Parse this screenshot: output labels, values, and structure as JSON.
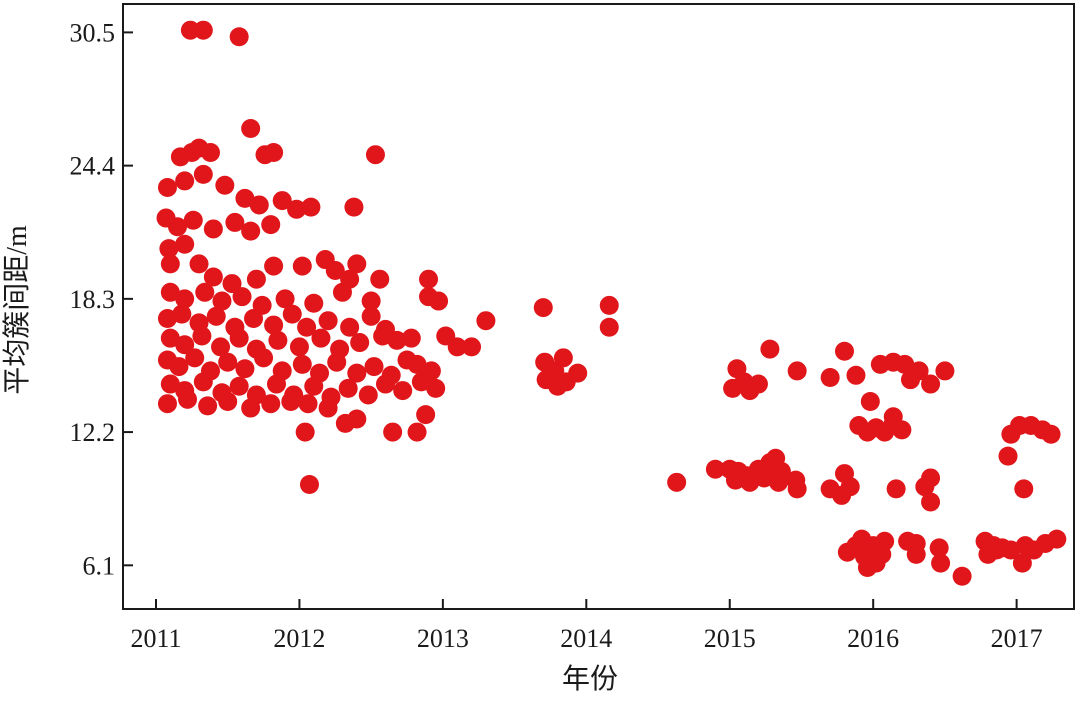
{
  "chart_data": {
    "type": "scatter",
    "title": "",
    "xlabel": "年份",
    "ylabel": "平均簇间距/m",
    "xlim": [
      2010.77,
      2017.4
    ],
    "ylim": [
      4.1,
      31.8
    ],
    "x_ticks": [
      2011,
      2012,
      2013,
      2014,
      2015,
      2016,
      2017
    ],
    "x_tick_labels": [
      "2011",
      "2012",
      "2013",
      "2014",
      "2015",
      "2016",
      "2017"
    ],
    "y_ticks": [
      6.1,
      12.2,
      18.3,
      24.4,
      30.5
    ],
    "y_tick_labels": [
      "6.1",
      "12.2",
      "18.3",
      "24.4",
      "30.5"
    ],
    "grid": false,
    "legend": "none",
    "marker_color": "#e0161b",
    "series": [
      {
        "points": [
          [
            2011.24,
            30.6
          ],
          [
            2011.33,
            30.6
          ],
          [
            2011.58,
            30.3
          ],
          [
            2011.66,
            26.1
          ],
          [
            2011.17,
            24.8
          ],
          [
            2011.25,
            25.0
          ],
          [
            2011.3,
            25.2
          ],
          [
            2011.38,
            25.0
          ],
          [
            2011.76,
            24.9
          ],
          [
            2011.82,
            25.0
          ],
          [
            2012.53,
            24.9
          ],
          [
            2011.08,
            23.4
          ],
          [
            2011.2,
            23.7
          ],
          [
            2011.33,
            24.0
          ],
          [
            2011.48,
            23.5
          ],
          [
            2011.62,
            22.9
          ],
          [
            2011.72,
            22.6
          ],
          [
            2011.88,
            22.8
          ],
          [
            2011.98,
            22.4
          ],
          [
            2012.08,
            22.5
          ],
          [
            2012.38,
            22.5
          ],
          [
            2011.07,
            22.0
          ],
          [
            2011.15,
            21.6
          ],
          [
            2011.26,
            21.9
          ],
          [
            2011.4,
            21.5
          ],
          [
            2011.55,
            21.8
          ],
          [
            2011.66,
            21.4
          ],
          [
            2011.8,
            21.7
          ],
          [
            2011.09,
            20.6
          ],
          [
            2011.2,
            20.8
          ],
          [
            2011.3,
            19.9
          ],
          [
            2011.1,
            19.9
          ],
          [
            2011.4,
            19.3
          ],
          [
            2011.53,
            19.0
          ],
          [
            2011.7,
            19.2
          ],
          [
            2011.82,
            19.8
          ],
          [
            2012.02,
            19.8
          ],
          [
            2012.18,
            20.1
          ],
          [
            2012.25,
            19.6
          ],
          [
            2012.4,
            19.9
          ],
          [
            2012.35,
            19.2
          ],
          [
            2012.56,
            19.2
          ],
          [
            2012.9,
            19.2
          ],
          [
            2011.1,
            18.6
          ],
          [
            2011.2,
            18.3
          ],
          [
            2011.34,
            18.6
          ],
          [
            2011.46,
            18.2
          ],
          [
            2011.6,
            18.4
          ],
          [
            2011.74,
            18.0
          ],
          [
            2011.9,
            18.3
          ],
          [
            2012.1,
            18.1
          ],
          [
            2012.3,
            18.6
          ],
          [
            2012.5,
            18.2
          ],
          [
            2012.9,
            18.4
          ],
          [
            2012.97,
            18.2
          ],
          [
            2011.08,
            17.4
          ],
          [
            2011.18,
            17.6
          ],
          [
            2011.3,
            17.2
          ],
          [
            2011.42,
            17.5
          ],
          [
            2011.55,
            17.0
          ],
          [
            2011.68,
            17.4
          ],
          [
            2011.82,
            17.1
          ],
          [
            2011.95,
            17.6
          ],
          [
            2012.05,
            17.0
          ],
          [
            2012.2,
            17.3
          ],
          [
            2012.35,
            17.0
          ],
          [
            2012.5,
            17.5
          ],
          [
            2012.6,
            16.9
          ],
          [
            2013.02,
            16.6
          ],
          [
            2013.3,
            17.3
          ],
          [
            2011.1,
            16.5
          ],
          [
            2011.2,
            16.2
          ],
          [
            2011.32,
            16.6
          ],
          [
            2011.45,
            16.1
          ],
          [
            2011.58,
            16.5
          ],
          [
            2011.7,
            16.0
          ],
          [
            2011.85,
            16.4
          ],
          [
            2012.0,
            16.1
          ],
          [
            2012.15,
            16.5
          ],
          [
            2012.28,
            16.0
          ],
          [
            2012.42,
            16.3
          ],
          [
            2012.58,
            16.6
          ],
          [
            2012.68,
            16.4
          ],
          [
            2012.78,
            16.5
          ],
          [
            2013.1,
            16.1
          ],
          [
            2013.2,
            16.1
          ],
          [
            2011.08,
            15.5
          ],
          [
            2011.16,
            15.2
          ],
          [
            2011.27,
            15.6
          ],
          [
            2011.38,
            15.0
          ],
          [
            2011.5,
            15.4
          ],
          [
            2011.62,
            15.1
          ],
          [
            2011.75,
            15.6
          ],
          [
            2011.88,
            15.0
          ],
          [
            2012.02,
            15.3
          ],
          [
            2012.14,
            14.9
          ],
          [
            2012.26,
            15.4
          ],
          [
            2012.4,
            14.9
          ],
          [
            2012.52,
            15.2
          ],
          [
            2012.64,
            14.8
          ],
          [
            2012.75,
            15.5
          ],
          [
            2012.82,
            15.3
          ],
          [
            2012.92,
            15.0
          ],
          [
            2011.1,
            14.4
          ],
          [
            2011.2,
            14.1
          ],
          [
            2011.33,
            14.5
          ],
          [
            2011.46,
            14.0
          ],
          [
            2011.58,
            14.3
          ],
          [
            2011.7,
            13.9
          ],
          [
            2011.84,
            14.4
          ],
          [
            2011.96,
            13.9
          ],
          [
            2012.1,
            14.3
          ],
          [
            2012.22,
            13.8
          ],
          [
            2012.34,
            14.2
          ],
          [
            2012.48,
            13.9
          ],
          [
            2012.6,
            14.4
          ],
          [
            2012.72,
            14.1
          ],
          [
            2012.85,
            14.5
          ],
          [
            2012.95,
            14.2
          ],
          [
            2011.08,
            13.5
          ],
          [
            2011.22,
            13.7
          ],
          [
            2011.36,
            13.4
          ],
          [
            2011.5,
            13.6
          ],
          [
            2011.66,
            13.3
          ],
          [
            2011.8,
            13.5
          ],
          [
            2011.94,
            13.6
          ],
          [
            2012.06,
            13.5
          ],
          [
            2012.2,
            13.3
          ],
          [
            2012.32,
            12.6
          ],
          [
            2012.4,
            12.8
          ],
          [
            2012.88,
            13.0
          ],
          [
            2012.04,
            12.2
          ],
          [
            2012.65,
            12.2
          ],
          [
            2012.82,
            12.2
          ],
          [
            2012.07,
            9.8
          ],
          [
            2013.7,
            17.9
          ],
          [
            2014.16,
            18.0
          ],
          [
            2014.16,
            17.0
          ],
          [
            2013.84,
            15.6
          ],
          [
            2013.71,
            15.4
          ],
          [
            2013.78,
            15.0
          ],
          [
            2013.72,
            14.6
          ],
          [
            2013.86,
            14.5
          ],
          [
            2013.94,
            14.9
          ],
          [
            2013.8,
            14.3
          ],
          [
            2014.63,
            9.9
          ],
          [
            2015.28,
            16.0
          ],
          [
            2015.05,
            15.1
          ],
          [
            2015.1,
            14.5
          ],
          [
            2015.02,
            14.2
          ],
          [
            2015.14,
            14.1
          ],
          [
            2015.2,
            14.4
          ],
          [
            2015.47,
            15.0
          ],
          [
            2014.9,
            10.5
          ],
          [
            2015.0,
            10.5
          ],
          [
            2015.06,
            10.4
          ],
          [
            2015.12,
            10.2
          ],
          [
            2015.2,
            10.5
          ],
          [
            2015.28,
            10.6
          ],
          [
            2015.36,
            10.4
          ],
          [
            2015.46,
            10.0
          ],
          [
            2015.04,
            10.0
          ],
          [
            2015.14,
            9.9
          ],
          [
            2015.24,
            10.1
          ],
          [
            2015.34,
            9.9
          ],
          [
            2015.28,
            10.8
          ],
          [
            2015.32,
            11.0
          ],
          [
            2015.47,
            9.6
          ],
          [
            2015.7,
            14.7
          ],
          [
            2015.8,
            15.9
          ],
          [
            2015.88,
            14.8
          ],
          [
            2016.05,
            15.3
          ],
          [
            2016.14,
            15.4
          ],
          [
            2016.22,
            15.3
          ],
          [
            2016.26,
            14.6
          ],
          [
            2016.32,
            15.0
          ],
          [
            2016.4,
            14.4
          ],
          [
            2016.5,
            15.0
          ],
          [
            2015.98,
            13.6
          ],
          [
            2015.9,
            12.5
          ],
          [
            2015.96,
            12.2
          ],
          [
            2016.02,
            12.4
          ],
          [
            2016.08,
            12.2
          ],
          [
            2016.14,
            12.6
          ],
          [
            2016.2,
            12.3
          ],
          [
            2016.14,
            12.9
          ],
          [
            2015.7,
            9.6
          ],
          [
            2015.78,
            9.3
          ],
          [
            2015.84,
            9.7
          ],
          [
            2015.8,
            10.3
          ],
          [
            2016.16,
            9.6
          ],
          [
            2016.36,
            9.7
          ],
          [
            2016.4,
            10.1
          ],
          [
            2016.4,
            9.0
          ],
          [
            2015.82,
            6.7
          ],
          [
            2015.88,
            7.0
          ],
          [
            2015.94,
            6.5
          ],
          [
            2016.0,
            7.0
          ],
          [
            2016.06,
            6.6
          ],
          [
            2015.96,
            6.0
          ],
          [
            2016.02,
            6.2
          ],
          [
            2015.92,
            7.3
          ],
          [
            2016.08,
            7.2
          ],
          [
            2016.24,
            7.2
          ],
          [
            2016.3,
            7.1
          ],
          [
            2016.3,
            6.6
          ],
          [
            2016.46,
            6.9
          ],
          [
            2016.47,
            6.2
          ],
          [
            2016.62,
            5.6
          ],
          [
            2016.78,
            7.2
          ],
          [
            2016.84,
            7.0
          ],
          [
            2016.9,
            6.9
          ],
          [
            2016.96,
            6.8
          ],
          [
            2016.8,
            6.6
          ],
          [
            2016.86,
            6.8
          ],
          [
            2017.06,
            7.0
          ],
          [
            2017.12,
            6.8
          ],
          [
            2017.04,
            6.2
          ],
          [
            2017.2,
            7.1
          ],
          [
            2017.28,
            7.3
          ],
          [
            2016.94,
            11.1
          ],
          [
            2016.96,
            12.1
          ],
          [
            2017.02,
            12.5
          ],
          [
            2017.1,
            12.5
          ],
          [
            2017.18,
            12.3
          ],
          [
            2017.24,
            12.1
          ],
          [
            2017.05,
            9.6
          ]
        ]
      }
    ]
  }
}
